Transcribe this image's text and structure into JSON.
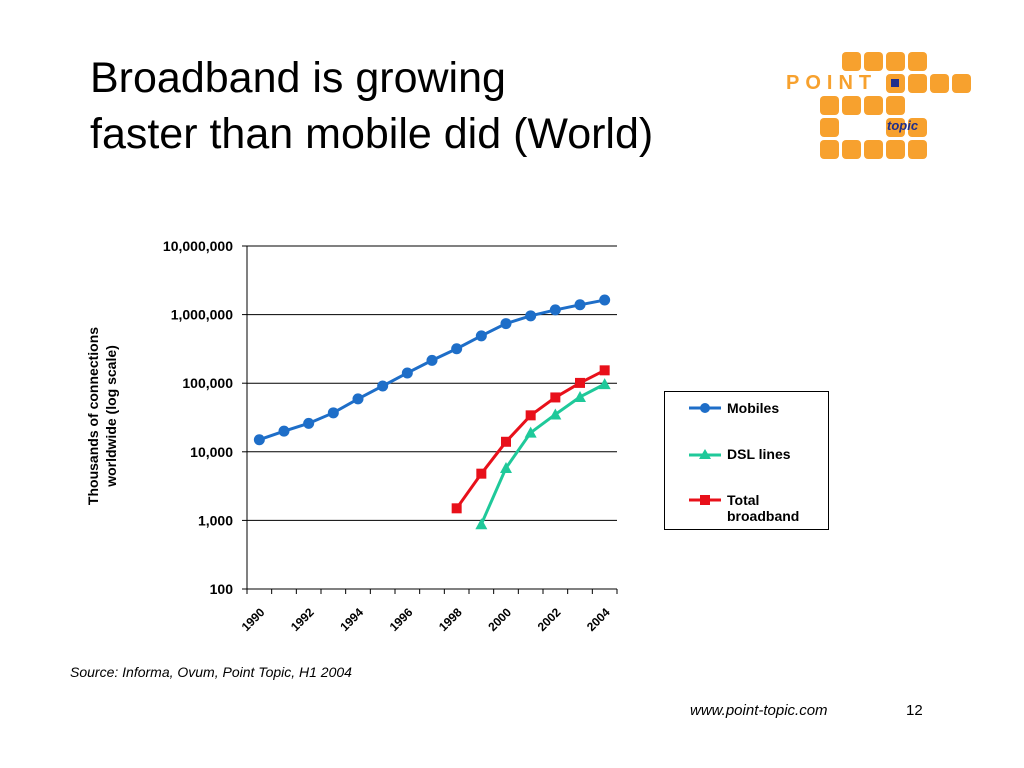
{
  "slide": {
    "title_line1": "Broadband is growing",
    "title_line2": "faster than mobile did (World)",
    "source": "Source: Informa, Ovum, Point Topic, H1 2004",
    "url": "www.point-topic.com",
    "page_number": "12"
  },
  "logo": {
    "text_point": "POINT",
    "text_topic": "topic",
    "color_orange": "#F7A12E",
    "color_navy": "#1F2E8C"
  },
  "chart_data": {
    "type": "line",
    "title": "",
    "xlabel": "",
    "ylabel": "Thousands of connections worldwide (log scale)",
    "y_scale": "log",
    "ylim": [
      100,
      10000000
    ],
    "xlim": [
      1990,
      2004
    ],
    "y_ticks": [
      "10,000,000",
      "1,000,000",
      "100,000",
      "10,000",
      "1,000",
      "100"
    ],
    "x_ticks": [
      "1990",
      "1992",
      "1994",
      "1996",
      "1998",
      "2000",
      "2002",
      "2004"
    ],
    "grid": "horizontal",
    "legend_position": "right",
    "series": [
      {
        "name": "Mobiles",
        "color": "#1E6EC8",
        "marker": "circle",
        "x": [
          1990,
          1991,
          1992,
          1993,
          1994,
          1995,
          1996,
          1997,
          1998,
          1999,
          2000,
          2001,
          2002,
          2003,
          2004
        ],
        "y": [
          15000,
          20000,
          26000,
          37000,
          59000,
          91000,
          141000,
          215000,
          318000,
          490000,
          740000,
          960000,
          1170000,
          1390000,
          1630000
        ]
      },
      {
        "name": "DSL lines",
        "color": "#1FC99A",
        "marker": "triangle",
        "x": [
          1999,
          2000,
          2001,
          2002,
          2003,
          2004
        ],
        "y": [
          880,
          5800,
          19000,
          35000,
          63000,
          97000
        ]
      },
      {
        "name": "Total broadband",
        "color": "#E8101A",
        "marker": "square",
        "x": [
          1998,
          1999,
          2000,
          2001,
          2002,
          2003,
          2004
        ],
        "y": [
          1500,
          4800,
          14000,
          34000,
          62000,
          101000,
          154000
        ]
      }
    ]
  }
}
